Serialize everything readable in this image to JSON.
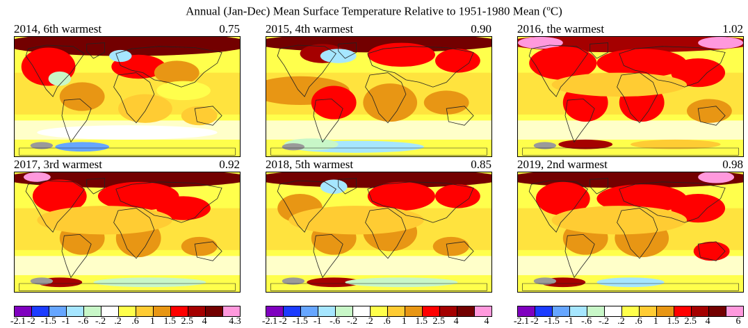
{
  "title": "Annual (Jan-Dec) Mean Surface Temperature Relative to 1951-1980 Mean (",
  "title_unit_sup": "o",
  "title_unit_end": "C)",
  "colors": {
    "bins": [
      "#7f00bf",
      "#1c3cff",
      "#66a6ff",
      "#a6e6ff",
      "#c8f7c8",
      "#ffffff",
      "#ffff4c",
      "#ffcc33",
      "#e89614",
      "#ff0000",
      "#a50000",
      "#730000",
      "#ff99dd"
    ],
    "no_data": "#9a9a9a"
  },
  "panels": [
    {
      "label": "2014, 6th warmest",
      "value": "0.75",
      "legend_max": "4.3",
      "key": "p2014"
    },
    {
      "label": "2015, 4th warmest",
      "value": "0.90",
      "legend_max": "4",
      "key": "p2015"
    },
    {
      "label": "2016, the warmest",
      "value": "1.02",
      "legend_max": "6",
      "key": "p2016"
    },
    {
      "label": "2017, 3rd warmest",
      "value": "0.92",
      "key": "p2017"
    },
    {
      "label": "2018, 5th warmest",
      "value": "0.85",
      "key": "p2018"
    },
    {
      "label": "2019, 2nd warmest",
      "value": "0.98",
      "key": "p2019"
    }
  ],
  "legend_ticks": [
    "-2.1",
    "-2",
    "-1.5",
    "-1",
    "-.6",
    "-.2",
    ".2",
    ".6",
    "1",
    "1.5",
    "2.5",
    "4"
  ],
  "legends": [
    {
      "max": "4.3"
    },
    {
      "max": "4"
    },
    {
      "max": "6"
    }
  ]
}
